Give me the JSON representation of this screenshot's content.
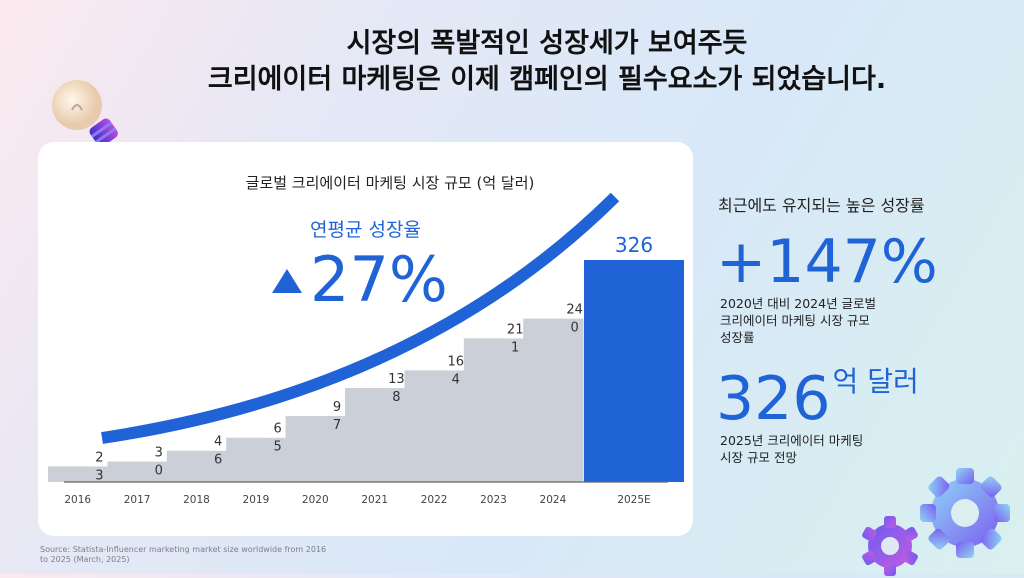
{
  "header": {
    "line1": "시장의 폭발적인 성장세가 보여주듯",
    "line2": "크리에이터 마케팅은 이제 캠페인의 필수요소가 되었습니다."
  },
  "cagr": {
    "label": "연평균 성장율",
    "value": "27%"
  },
  "chart_data": {
    "type": "bar",
    "title": "글로벌 크리에이터 마케팅 시장 규모 (억 달러)",
    "categories": [
      "2016",
      "2017",
      "2018",
      "2019",
      "2020",
      "2021",
      "2022",
      "2023",
      "2024",
      "2025E"
    ],
    "values": [
      23,
      30,
      46,
      65,
      97,
      138,
      164,
      211,
      240,
      326
    ],
    "ylim": [
      0,
      326
    ],
    "xlabel": "",
    "ylabel": "",
    "highlight_color": "#1f63d6",
    "bar_color": "#cbd0d8",
    "grid": false
  },
  "side": {
    "heading": "최근에도 유지되는 높은 성장률",
    "stat1": {
      "value": "+147%",
      "desc": [
        "2020년 대비 2024년 글로벌",
        "크리에이터 마케팅 시장 규모",
        "성장률"
      ]
    },
    "stat2": {
      "value": "326",
      "unit": "억 달러",
      "desc": [
        "2025년 크리에이터 마케팅",
        "시장 규모 전망"
      ]
    }
  },
  "source": "Source: Statista-Influencer marketing market size worldwide from 2016 to 2025 (March, 2025)",
  "icons": [
    "lightbulb-icon",
    "gears-icon",
    "up-triangle-icon"
  ]
}
